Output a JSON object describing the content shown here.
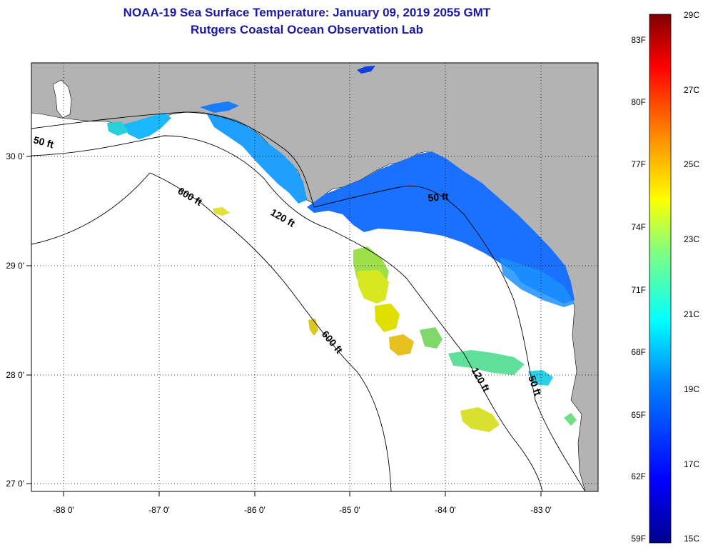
{
  "title": {
    "line1": "NOAA-19 Sea Surface Temperature:  January 09, 2019 2055 GMT",
    "line2": "Rutgers Coastal Ocean Observation Lab"
  },
  "axes": {
    "lon_ticks": [
      "-88 0'",
      "-87 0'",
      "-86 0'",
      "-85 0'",
      "-84 0'",
      "-83 0'"
    ],
    "lat_ticks": [
      "30 0'",
      "29 0'",
      "28 0'",
      "27 0'"
    ]
  },
  "contours": {
    "labels": [
      "50 ft",
      "600 ft",
      "120 ft",
      "50 ft",
      "600 ft",
      "120 ft",
      "50 ft"
    ]
  },
  "colorbar": {
    "fahrenheit": [
      "83F",
      "80F",
      "77F",
      "74F",
      "71F",
      "68F",
      "65F",
      "62F",
      "59F"
    ],
    "celsius": [
      "29C",
      "27C",
      "25C",
      "23C",
      "21C",
      "19C",
      "17C",
      "15C"
    ]
  },
  "colors": {
    "land": "#b3b3b3",
    "title": "#1a1aa6",
    "ocean_no_data": "#ffffff"
  }
}
